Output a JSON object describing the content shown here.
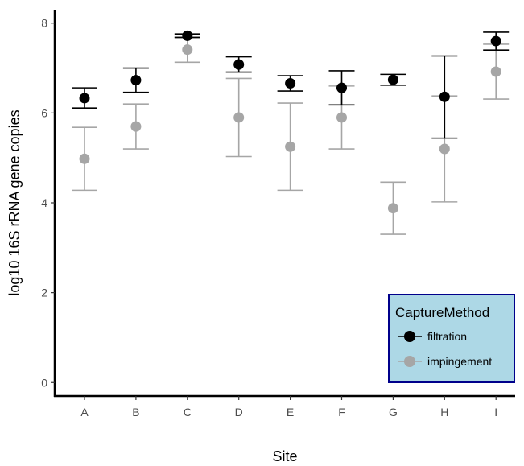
{
  "chart_data": {
    "type": "scatter",
    "xlabel": "Site",
    "ylabel": "log10 16S rRNA gene copies",
    "categories": [
      "A",
      "B",
      "C",
      "D",
      "E",
      "F",
      "G",
      "H",
      "I"
    ],
    "ylim": [
      -0.3,
      8.3
    ],
    "yticks": [
      0,
      2,
      4,
      6,
      8
    ],
    "grid": false,
    "series": [
      {
        "name": "impingement",
        "color": "#a6a6a6",
        "values": [
          4.98,
          5.7,
          7.41,
          5.9,
          5.25,
          5.9,
          3.88,
          5.2,
          6.92
        ],
        "lower": [
          4.28,
          5.2,
          7.13,
          5.03,
          4.28,
          5.2,
          3.3,
          4.02,
          6.31
        ],
        "upper": [
          5.68,
          6.2,
          7.69,
          6.77,
          6.22,
          6.6,
          4.46,
          6.38,
          7.53
        ]
      },
      {
        "name": "filtration",
        "color": "#000000",
        "values": [
          6.33,
          6.73,
          7.72,
          7.08,
          6.66,
          6.56,
          6.74,
          6.36,
          7.6
        ],
        "lower": [
          6.11,
          6.46,
          7.68,
          6.91,
          6.49,
          6.18,
          6.62,
          5.44,
          7.4
        ],
        "upper": [
          6.56,
          7.0,
          7.76,
          7.25,
          6.83,
          6.94,
          6.86,
          7.27,
          7.8
        ]
      }
    ],
    "legend": {
      "title": "CaptureMethod",
      "entries": [
        "filtration",
        "impingement"
      ],
      "position": "bottom-right",
      "background": "#add8e6",
      "border": "#00008b"
    }
  }
}
